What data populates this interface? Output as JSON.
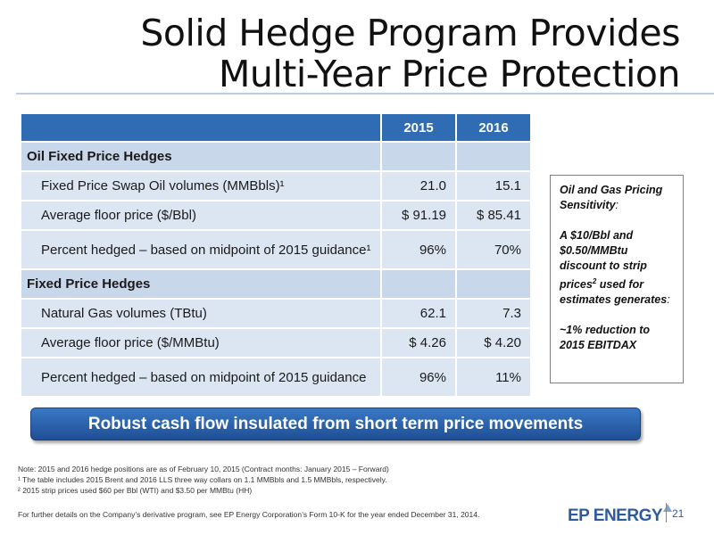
{
  "title": {
    "line1": "Solid Hedge Program Provides",
    "line2": "Multi-Year Price Protection"
  },
  "table": {
    "headers": [
      "",
      "2015",
      "2016"
    ],
    "rows": [
      {
        "type": "section",
        "label": "Oil Fixed Price Hedges",
        "v2015": "",
        "v2016": ""
      },
      {
        "type": "row",
        "label": "Fixed Price Swap Oil volumes (MMBbls)¹",
        "v2015": "21.0",
        "v2016": "15.1"
      },
      {
        "type": "row",
        "label": "Average floor price ($/Bbl)",
        "v2015": "$ 91.19",
        "v2016": "$ 85.41"
      },
      {
        "type": "tall",
        "label": "Percent hedged – based on midpoint of 2015 guidance¹",
        "v2015": "96%",
        "v2016": "70%"
      },
      {
        "type": "section",
        "label": "Fixed Price Hedges",
        "v2015": "",
        "v2016": ""
      },
      {
        "type": "row",
        "label": "Natural Gas volumes (TBtu)",
        "v2015": "62.1",
        "v2016": "7.3"
      },
      {
        "type": "row",
        "label": "Average floor price ($/MMBtu)",
        "v2015": "$ 4.26",
        "v2016": "$ 4.20"
      },
      {
        "type": "tall",
        "label": "Percent hedged – based on midpoint of 2015 guidance",
        "v2015": "96%",
        "v2016": "11%"
      }
    ]
  },
  "sensitivity": {
    "heading": "Oil and Gas Pricing Sensitivity",
    "heading_suffix": ":",
    "body_a": "A $10/Bbl and $0.50/MMBtu discount to strip prices",
    "body_sup": "2",
    "body_b": " used for estimates  generates",
    "body_suffix": ":",
    "result": "~1% reduction to 2015 EBITDAX"
  },
  "banner": "Robust cash flow insulated from short term price movements",
  "notes": [
    "Note:  2015 and 2016 hedge positions are as of February 10, 2015 (Contract months: January 2015 – Forward)",
    "¹ The table includes 2015 Brent and 2016 LLS three way collars on 1.1 MMBbls and 1.5 MMBbls, respectively.",
    "² 2015 strip prices  used $60 per Bbl (WTI) and $3.50 per MMBtu (HH)"
  ],
  "footer_note": "For further details on the Company’s derivative program, see  EP Energy Corporation’s Form 10-K for the year ended December 31, 2014.",
  "logo": "EP ENERGY",
  "page_number": "21"
}
